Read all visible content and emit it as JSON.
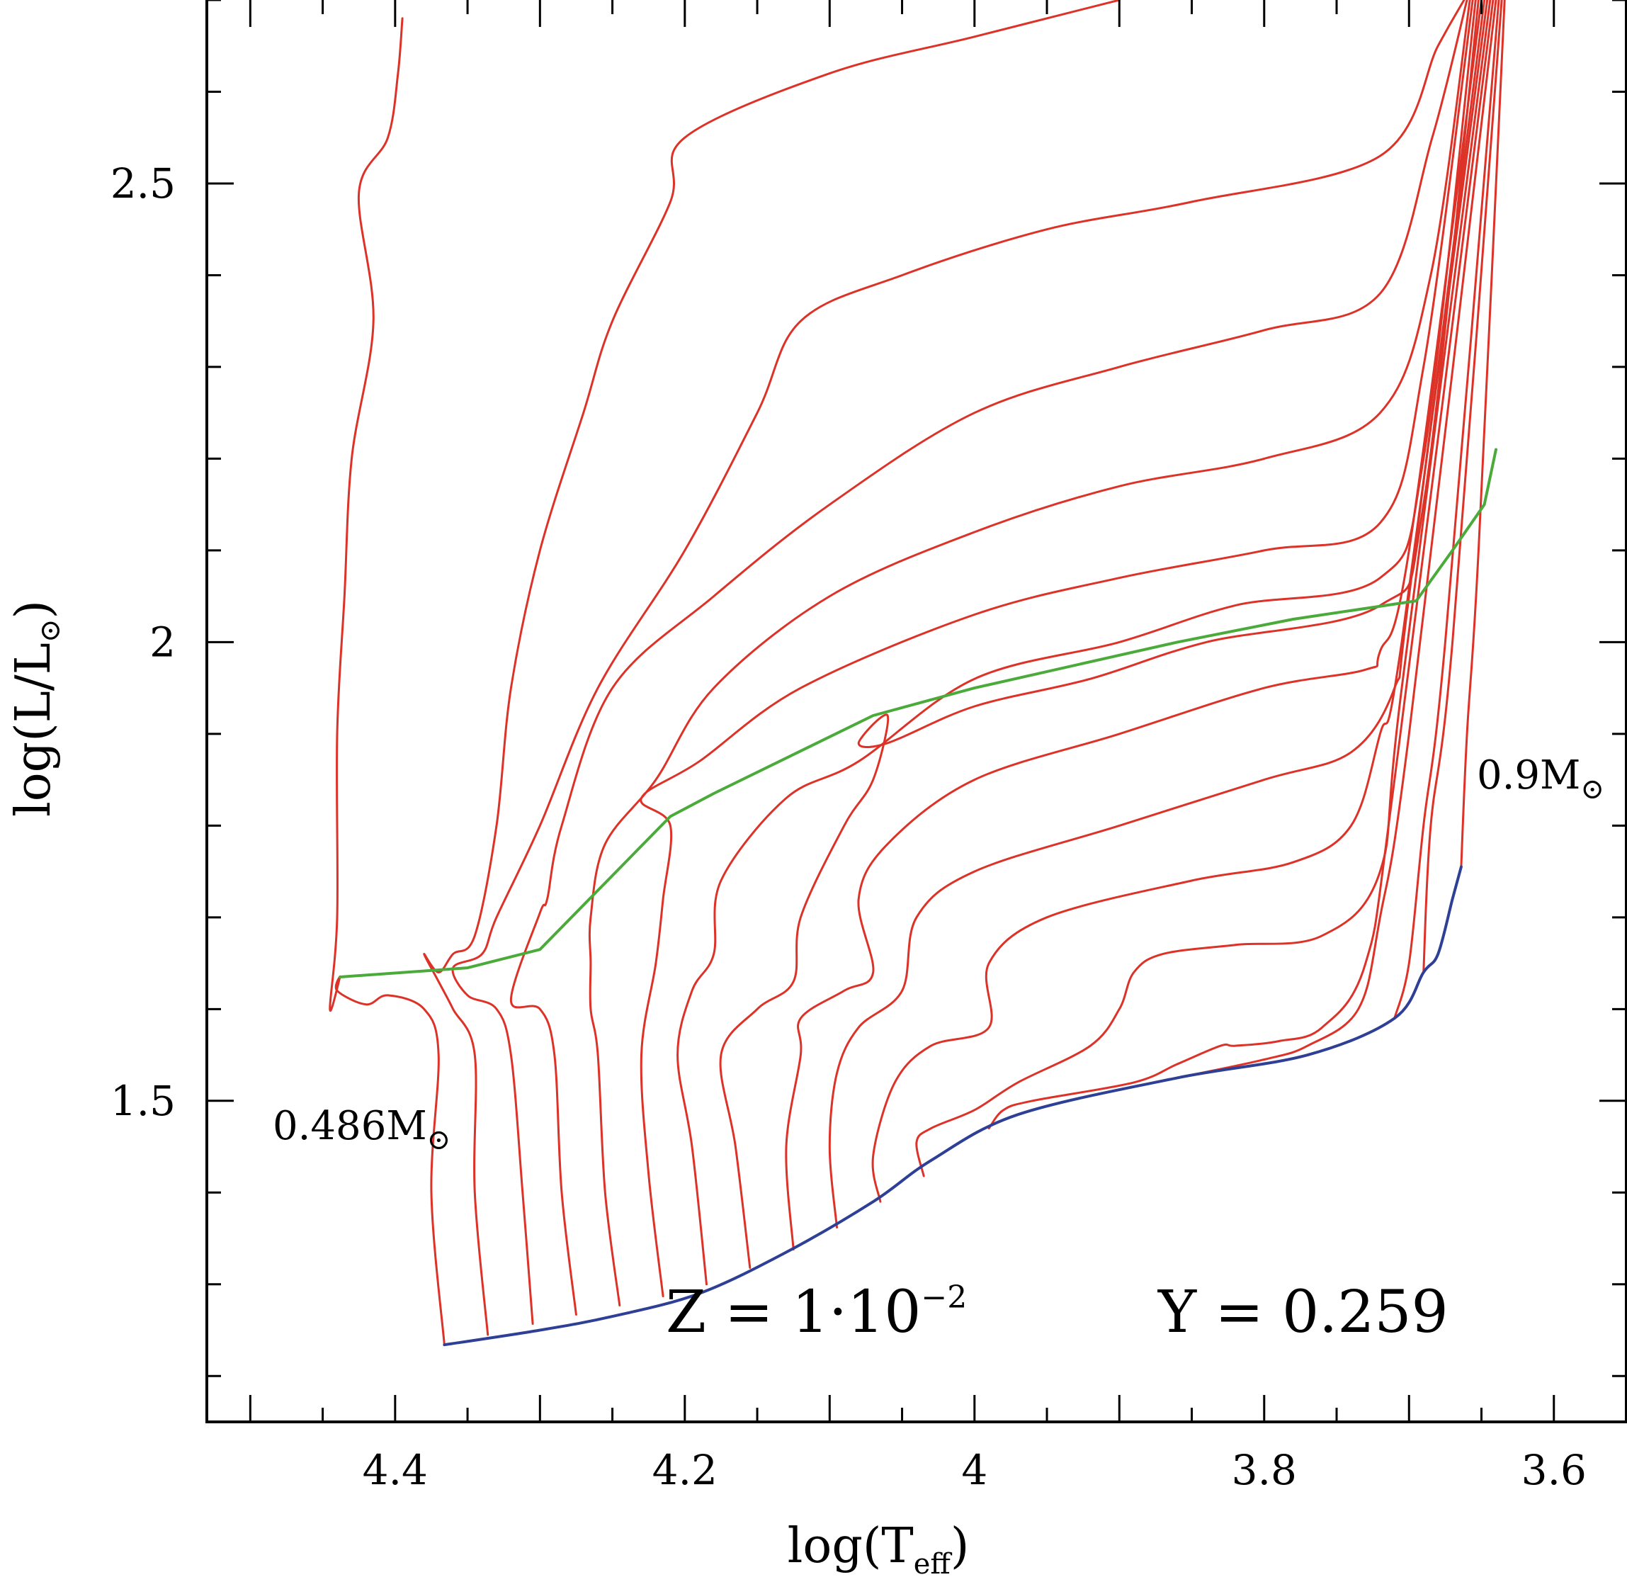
{
  "chart_data": {
    "type": "line",
    "title": "",
    "xlabel_main": "log(T",
    "xlabel_sub": "eff",
    "xlabel_close": ")",
    "ylabel_main": "log(L/L",
    "ylabel_sub": "⊙",
    "ylabel_close": ")",
    "xlim": [
      4.53,
      3.55
    ],
    "ylim": [
      1.15,
      2.7
    ],
    "x_ticks": [
      {
        "value": 4.4,
        "label": "4.4"
      },
      {
        "value": 4.2,
        "label": "4.2"
      },
      {
        "value": 4.0,
        "label": "4"
      },
      {
        "value": 3.8,
        "label": "3.8"
      },
      {
        "value": 3.6,
        "label": "3.6"
      }
    ],
    "y_ticks": [
      {
        "value": 1.5,
        "label": "1.5"
      },
      {
        "value": 2.0,
        "label": "2"
      },
      {
        "value": 2.5,
        "label": "2.5"
      }
    ],
    "annotations": {
      "low_mass_value": "0.486M",
      "low_mass_sub": "⊙",
      "high_mass_value": "0.9M",
      "high_mass_sub": "⊙",
      "z_text": "Z = 1·10",
      "z_exp": "−2",
      "y_text": "Y = 0.259"
    },
    "colors": {
      "tracks": "#dc3228",
      "zahb": "#2e3f96",
      "green_locus": "#4aaa3a",
      "axes": "#000000"
    },
    "zahb": {
      "name": "ZAHB",
      "points": [
        [
          4.366,
          1.234
        ],
        [
          4.3,
          1.25
        ],
        [
          4.25,
          1.265
        ],
        [
          4.19,
          1.29
        ],
        [
          4.13,
          1.335
        ],
        [
          4.07,
          1.39
        ],
        [
          4.03,
          1.435
        ],
        [
          3.97,
          1.485
        ],
        [
          3.86,
          1.525
        ],
        [
          3.77,
          1.55
        ],
        [
          3.71,
          1.59
        ],
        [
          3.69,
          1.64
        ],
        [
          3.68,
          1.66
        ],
        [
          3.67,
          1.72
        ],
        [
          3.664,
          1.755
        ]
      ]
    },
    "green_locus": {
      "name": "green-locus",
      "points": [
        [
          4.438,
          1.635
        ],
        [
          4.35,
          1.645
        ],
        [
          4.3,
          1.665
        ],
        [
          4.21,
          1.81
        ],
        [
          4.18,
          1.835
        ],
        [
          4.07,
          1.92
        ],
        [
          4.0,
          1.95
        ],
        [
          3.86,
          2.0
        ],
        [
          3.78,
          2.025
        ],
        [
          3.695,
          2.045
        ],
        [
          3.67,
          2.1
        ],
        [
          3.648,
          2.15
        ],
        [
          3.64,
          2.21
        ]
      ]
    },
    "tracks": [
      {
        "name": "track-0.486",
        "points": [
          [
            4.366,
            1.234
          ],
          [
            4.375,
            1.4
          ],
          [
            4.37,
            1.55
          ],
          [
            4.38,
            1.6
          ],
          [
            4.405,
            1.615
          ],
          [
            4.42,
            1.605
          ],
          [
            4.44,
            1.62
          ],
          [
            4.438,
            1.635
          ],
          [
            4.445,
            1.6
          ],
          [
            4.44,
            1.7
          ],
          [
            4.44,
            1.9
          ],
          [
            4.435,
            2.05
          ],
          [
            4.43,
            2.2
          ],
          [
            4.415,
            2.35
          ],
          [
            4.425,
            2.49
          ],
          [
            4.405,
            2.55
          ],
          [
            4.398,
            2.62
          ],
          [
            4.395,
            2.68
          ]
        ]
      },
      {
        "name": "track-0.50",
        "points": [
          [
            4.336,
            1.245
          ],
          [
            4.345,
            1.4
          ],
          [
            4.345,
            1.55
          ],
          [
            4.36,
            1.6
          ],
          [
            4.37,
            1.63
          ],
          [
            4.38,
            1.66
          ],
          [
            4.37,
            1.64
          ],
          [
            4.36,
            1.66
          ],
          [
            4.345,
            1.68
          ],
          [
            4.33,
            1.8
          ],
          [
            4.32,
            1.95
          ],
          [
            4.3,
            2.1
          ],
          [
            4.27,
            2.25
          ],
          [
            4.25,
            2.35
          ],
          [
            4.21,
            2.48
          ],
          [
            4.2,
            2.55
          ],
          [
            4.1,
            2.62
          ],
          [
            4.0,
            2.66
          ],
          [
            3.9,
            2.7
          ]
        ]
      },
      {
        "name": "track-0.52",
        "points": [
          [
            4.305,
            1.257
          ],
          [
            4.312,
            1.4
          ],
          [
            4.32,
            1.55
          ],
          [
            4.33,
            1.6
          ],
          [
            4.35,
            1.615
          ],
          [
            4.36,
            1.645
          ],
          [
            4.34,
            1.66
          ],
          [
            4.33,
            1.7
          ],
          [
            4.3,
            1.8
          ],
          [
            4.26,
            1.95
          ],
          [
            4.2,
            2.1
          ],
          [
            4.15,
            2.25
          ],
          [
            4.12,
            2.35
          ],
          [
            4.05,
            2.4
          ],
          [
            3.95,
            2.45
          ],
          [
            3.85,
            2.48
          ],
          [
            3.72,
            2.53
          ],
          [
            3.68,
            2.65
          ],
          [
            3.662,
            2.7
          ]
        ]
      },
      {
        "name": "track-0.54",
        "points": [
          [
            4.275,
            1.267
          ],
          [
            4.285,
            1.4
          ],
          [
            4.29,
            1.55
          ],
          [
            4.3,
            1.6
          ],
          [
            4.32,
            1.61
          ],
          [
            4.3,
            1.705
          ],
          [
            4.295,
            1.72
          ],
          [
            4.285,
            1.8
          ],
          [
            4.25,
            1.95
          ],
          [
            4.18,
            2.05
          ],
          [
            4.1,
            2.15
          ],
          [
            4.0,
            2.25
          ],
          [
            3.9,
            2.3
          ],
          [
            3.8,
            2.34
          ],
          [
            3.72,
            2.38
          ],
          [
            3.684,
            2.55
          ],
          [
            3.66,
            2.7
          ]
        ]
      },
      {
        "name": "track-0.56",
        "points": [
          [
            4.245,
            1.277
          ],
          [
            4.255,
            1.4
          ],
          [
            4.26,
            1.55
          ],
          [
            4.265,
            1.6
          ],
          [
            4.265,
            1.65
          ],
          [
            4.265,
            1.7
          ],
          [
            4.255,
            1.78
          ],
          [
            4.22,
            1.85
          ],
          [
            4.18,
            1.95
          ],
          [
            4.1,
            2.05
          ],
          [
            4.0,
            2.12
          ],
          [
            3.9,
            2.17
          ],
          [
            3.8,
            2.2
          ],
          [
            3.72,
            2.25
          ],
          [
            3.685,
            2.4
          ],
          [
            3.658,
            2.7
          ]
        ]
      },
      {
        "name": "track-0.58",
        "points": [
          [
            4.215,
            1.287
          ],
          [
            4.225,
            1.42
          ],
          [
            4.23,
            1.55
          ],
          [
            4.22,
            1.65
          ],
          [
            4.215,
            1.72
          ],
          [
            4.21,
            1.8
          ],
          [
            4.23,
            1.83
          ],
          [
            4.19,
            1.87
          ],
          [
            4.12,
            1.95
          ],
          [
            4.0,
            2.03
          ],
          [
            3.9,
            2.07
          ],
          [
            3.8,
            2.1
          ],
          [
            3.72,
            2.13
          ],
          [
            3.69,
            2.3
          ],
          [
            3.656,
            2.7
          ]
        ]
      },
      {
        "name": "track-0.60",
        "points": [
          [
            4.185,
            1.3
          ],
          [
            4.195,
            1.45
          ],
          [
            4.205,
            1.55
          ],
          [
            4.195,
            1.62
          ],
          [
            4.18,
            1.66
          ],
          [
            4.175,
            1.74
          ],
          [
            4.13,
            1.83
          ],
          [
            4.08,
            1.87
          ],
          [
            4.0,
            1.96
          ],
          [
            3.9,
            2.0
          ],
          [
            3.82,
            2.04
          ],
          [
            3.72,
            2.07
          ],
          [
            3.69,
            2.2
          ],
          [
            3.654,
            2.7
          ]
        ]
      },
      {
        "name": "track-0.62",
        "points": [
          [
            4.155,
            1.318
          ],
          [
            4.165,
            1.45
          ],
          [
            4.175,
            1.55
          ],
          [
            4.15,
            1.6
          ],
          [
            4.125,
            1.63
          ],
          [
            4.12,
            1.7
          ],
          [
            4.09,
            1.8
          ],
          [
            4.07,
            1.85
          ],
          [
            4.06,
            1.92
          ],
          [
            4.08,
            1.89
          ],
          [
            4.06,
            1.89
          ],
          [
            4.0,
            1.93
          ],
          [
            3.92,
            1.96
          ],
          [
            3.84,
            2.0
          ],
          [
            3.72,
            2.04
          ],
          [
            3.69,
            2.15
          ],
          [
            3.652,
            2.7
          ]
        ]
      },
      {
        "name": "track-0.64",
        "points": [
          [
            4.125,
            1.338
          ],
          [
            4.13,
            1.45
          ],
          [
            4.12,
            1.55
          ],
          [
            4.12,
            1.59
          ],
          [
            4.09,
            1.62
          ],
          [
            4.07,
            1.64
          ],
          [
            4.08,
            1.72
          ],
          [
            4.06,
            1.78
          ],
          [
            4.0,
            1.85
          ],
          [
            3.9,
            1.9
          ],
          [
            3.8,
            1.95
          ],
          [
            3.73,
            1.97
          ],
          [
            3.72,
            1.99
          ],
          [
            3.7,
            2.1
          ],
          [
            3.65,
            2.7
          ]
        ]
      },
      {
        "name": "track-0.66",
        "points": [
          [
            4.095,
            1.362
          ],
          [
            4.1,
            1.45
          ],
          [
            4.095,
            1.53
          ],
          [
            4.08,
            1.58
          ],
          [
            4.05,
            1.62
          ],
          [
            4.04,
            1.7
          ],
          [
            4.0,
            1.75
          ],
          [
            3.9,
            1.8
          ],
          [
            3.8,
            1.85
          ],
          [
            3.74,
            1.88
          ],
          [
            3.71,
            1.95
          ],
          [
            3.7,
            2.05
          ],
          [
            3.648,
            2.7
          ]
        ]
      },
      {
        "name": "track-0.68",
        "points": [
          [
            4.065,
            1.39
          ],
          [
            4.07,
            1.44
          ],
          [
            4.055,
            1.52
          ],
          [
            4.03,
            1.56
          ],
          [
            3.99,
            1.58
          ],
          [
            3.99,
            1.65
          ],
          [
            3.95,
            1.7
          ],
          [
            3.85,
            1.74
          ],
          [
            3.78,
            1.76
          ],
          [
            3.74,
            1.8
          ],
          [
            3.72,
            1.9
          ],
          [
            3.705,
            2.0
          ],
          [
            3.646,
            2.7
          ]
        ]
      },
      {
        "name": "track-0.70",
        "points": [
          [
            4.035,
            1.418
          ],
          [
            4.04,
            1.455
          ],
          [
            4.03,
            1.47
          ],
          [
            4.0,
            1.49
          ],
          [
            3.97,
            1.52
          ],
          [
            3.92,
            1.56
          ],
          [
            3.9,
            1.6
          ],
          [
            3.89,
            1.64
          ],
          [
            3.87,
            1.66
          ],
          [
            3.82,
            1.67
          ],
          [
            3.76,
            1.68
          ],
          [
            3.72,
            1.75
          ],
          [
            3.705,
            1.95
          ],
          [
            3.644,
            2.7
          ]
        ]
      },
      {
        "name": "track-0.72",
        "points": [
          [
            3.99,
            1.47
          ],
          [
            3.98,
            1.49
          ],
          [
            3.96,
            1.5
          ],
          [
            3.89,
            1.52
          ],
          [
            3.86,
            1.54
          ],
          [
            3.83,
            1.56
          ],
          [
            3.82,
            1.56
          ],
          [
            3.79,
            1.565
          ],
          [
            3.76,
            1.58
          ],
          [
            3.73,
            1.65
          ],
          [
            3.71,
            1.85
          ],
          [
            3.642,
            2.7
          ]
        ]
      },
      {
        "name": "track-0.75",
        "points": [
          [
            3.86,
            1.525
          ],
          [
            3.8,
            1.545
          ],
          [
            3.77,
            1.56
          ],
          [
            3.735,
            1.6
          ],
          [
            3.72,
            1.7
          ],
          [
            3.7,
            1.9
          ],
          [
            3.64,
            2.7
          ]
        ]
      },
      {
        "name": "track-0.80",
        "points": [
          [
            3.71,
            1.59
          ],
          [
            3.7,
            1.65
          ],
          [
            3.69,
            1.8
          ],
          [
            3.675,
            2.0
          ],
          [
            3.638,
            2.7
          ]
        ]
      },
      {
        "name": "track-0.85",
        "points": [
          [
            3.69,
            1.64
          ],
          [
            3.685,
            1.8
          ],
          [
            3.67,
            2.0
          ],
          [
            3.636,
            2.7
          ]
        ]
      },
      {
        "name": "track-0.90",
        "points": [
          [
            3.664,
            1.755
          ],
          [
            3.66,
            1.9
          ],
          [
            3.652,
            2.1
          ],
          [
            3.634,
            2.7
          ]
        ]
      }
    ]
  }
}
